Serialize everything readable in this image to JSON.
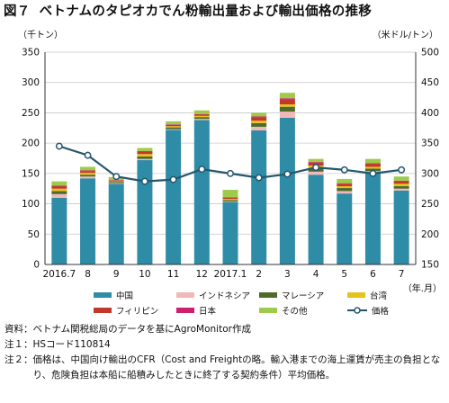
{
  "title": {
    "figure_no": "図７",
    "text": "ベトナムのタピオカでん粉輸出量および輸出価格の推移"
  },
  "units": {
    "left": "（千トン）",
    "right": "（米ドル/トン）",
    "period": "（年.月）"
  },
  "colors": {
    "china": "#2e8ca6",
    "indonesia": "#f2b8b8",
    "malaysia": "#4d6b2a",
    "taiwan": "#e8c21c",
    "philippines": "#c0392b",
    "japan": "#cc1f6e",
    "other": "#9ccc4a",
    "price": "#24566e"
  },
  "chart_data": {
    "type": "bar",
    "stacked": true,
    "categories": [
      "2016.7",
      "8",
      "9",
      "10",
      "11",
      "12",
      "2017.1",
      "2",
      "3",
      "4",
      "5",
      "6",
      "7"
    ],
    "y_left": {
      "min": 0,
      "max": 350,
      "step": 50,
      "ticks": [
        0,
        50,
        100,
        150,
        200,
        250,
        300,
        350
      ]
    },
    "y_right": {
      "min": 150,
      "max": 500,
      "step": 50,
      "ticks": [
        150,
        200,
        250,
        300,
        350,
        400,
        450,
        500
      ]
    },
    "grid": true,
    "series": [
      {
        "name": "中国",
        "key": "china",
        "values": [
          110,
          142,
          133,
          172,
          222,
          238,
          103,
          221,
          242,
          148,
          117,
          150,
          122
        ]
      },
      {
        "name": "インドネシア",
        "key": "indonesia",
        "values": [
          6,
          3,
          1,
          2,
          1,
          2,
          1,
          6,
          10,
          5,
          4,
          4,
          3
        ]
      },
      {
        "name": "マレーシア",
        "key": "malaysia",
        "values": [
          5,
          3,
          2,
          4,
          3,
          3,
          2,
          6,
          8,
          6,
          5,
          4,
          4
        ]
      },
      {
        "name": "台湾",
        "key": "taiwan",
        "values": [
          4,
          3,
          1,
          4,
          2,
          2,
          2,
          4,
          4,
          4,
          3,
          3,
          4
        ]
      },
      {
        "name": "フィリピン",
        "key": "philippines",
        "values": [
          4,
          3,
          1,
          4,
          2,
          2,
          2,
          5,
          8,
          5,
          4,
          5,
          4
        ]
      },
      {
        "name": "日本",
        "key": "japan",
        "values": [
          1,
          1,
          1,
          1,
          1,
          1,
          1,
          2,
          2,
          1,
          1,
          1,
          1
        ]
      },
      {
        "name": "その他",
        "key": "other",
        "values": [
          7,
          6,
          5,
          5,
          5,
          6,
          12,
          6,
          9,
          5,
          7,
          7,
          7
        ]
      }
    ],
    "line_series": {
      "name": "価格",
      "key": "price",
      "axis": "right",
      "values": [
        345,
        330,
        295,
        287,
        290,
        307,
        300,
        293,
        299,
        310,
        306,
        300,
        306
      ]
    }
  },
  "legend": [
    {
      "key": "china",
      "label": "中国",
      "type": "bar"
    },
    {
      "key": "indonesia",
      "label": "インドネシア",
      "type": "bar"
    },
    {
      "key": "malaysia",
      "label": "マレーシア",
      "type": "bar"
    },
    {
      "key": "taiwan",
      "label": "台湾",
      "type": "bar"
    },
    {
      "key": "philippines",
      "label": "フィリピン",
      "type": "bar"
    },
    {
      "key": "japan",
      "label": "日本",
      "type": "bar"
    },
    {
      "key": "other",
      "label": "その他",
      "type": "bar"
    },
    {
      "key": "price",
      "label": "価格",
      "type": "line"
    }
  ],
  "notes": [
    {
      "label": "資料：",
      "text": "ベトナム関税総局のデータを基にAgroMonitor作成"
    },
    {
      "label": "注１：",
      "text": "HSコード110814"
    },
    {
      "label": "注２：",
      "text": "価格は、中国向け輸出のCFR（Cost and Freightの略。輸入港までの海上運賃が売主の負担となり、危険負担は本船に船積みしたときに終了する契約条件）平均価格。"
    }
  ]
}
